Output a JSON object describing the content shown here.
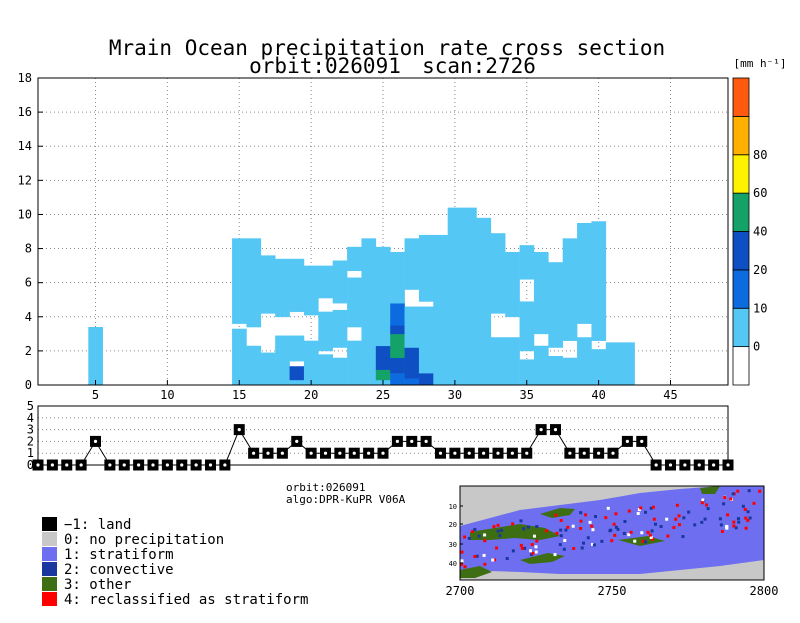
{
  "chart_data": {
    "type": "heatmap",
    "title": "Mrain Ocean precipitation rate cross section",
    "subtitle_orbit": "orbit:026091",
    "subtitle_scan": "scan:2726",
    "unit_label": "[mm h⁻¹]",
    "main": {
      "xlim": [
        1,
        49
      ],
      "ylim": [
        0,
        18
      ],
      "x_ticks": [
        5,
        10,
        15,
        20,
        25,
        30,
        35,
        40,
        45
      ],
      "y_ticks": [
        0,
        2,
        4,
        6,
        8,
        10,
        12,
        14,
        16,
        18
      ],
      "grid": true,
      "columns": [
        {
          "x": 5,
          "segments": [
            [
              0,
              3.4,
              1
            ]
          ]
        },
        {
          "x": 15,
          "segments": [
            [
              0,
              3.3,
              1
            ],
            [
              3.6,
              8.6,
              1
            ]
          ]
        },
        {
          "x": 16,
          "segments": [
            [
              0,
              2.3,
              1
            ],
            [
              3.4,
              8.6,
              1
            ]
          ]
        },
        {
          "x": 17,
          "segments": [
            [
              0,
              1.9,
              1
            ],
            [
              4.2,
              7.6,
              1
            ]
          ]
        },
        {
          "x": 18,
          "segments": [
            [
              0,
              2.9,
              1
            ],
            [
              4.0,
              7.4,
              1
            ]
          ]
        },
        {
          "x": 19,
          "segments": [
            [
              0,
              0.3,
              1
            ],
            [
              0.3,
              1.1,
              3
            ],
            [
              1.4,
              2.9,
              1
            ],
            [
              4.3,
              7.4,
              1
            ]
          ]
        },
        {
          "x": 20,
          "segments": [
            [
              0,
              2.6,
              1
            ],
            [
              4.1,
              7.0,
              1
            ]
          ]
        },
        {
          "x": 21,
          "segments": [
            [
              0,
              1.8,
              1
            ],
            [
              2.0,
              4.3,
              1
            ],
            [
              5.1,
              7.0,
              1
            ]
          ]
        },
        {
          "x": 22,
          "segments": [
            [
              0,
              1.6,
              1
            ],
            [
              2.2,
              4.4,
              1
            ],
            [
              4.8,
              7.3,
              1
            ]
          ]
        },
        {
          "x": 23,
          "segments": [
            [
              0,
              2.6,
              1
            ],
            [
              3.4,
              6.3,
              1
            ],
            [
              6.7,
              8.1,
              1
            ]
          ]
        },
        {
          "x": 24,
          "segments": [
            [
              0,
              8.6,
              1
            ]
          ]
        },
        {
          "x": 25,
          "segments": [
            [
              0,
              0.3,
              1
            ],
            [
              0.3,
              0.9,
              4
            ],
            [
              0.9,
              2.3,
              3
            ],
            [
              2.3,
              8.1,
              1
            ]
          ]
        },
        {
          "x": 26,
          "segments": [
            [
              0,
              0.7,
              2
            ],
            [
              0.7,
              1.6,
              3
            ],
            [
              1.6,
              3.0,
              4
            ],
            [
              3.0,
              3.5,
              3
            ],
            [
              3.5,
              4.8,
              2
            ],
            [
              4.8,
              7.8,
              1
            ]
          ]
        },
        {
          "x": 27,
          "segments": [
            [
              0,
              0.4,
              2
            ],
            [
              0.4,
              2.2,
              3
            ],
            [
              2.2,
              4.6,
              1
            ],
            [
              5.6,
              8.6,
              1
            ]
          ]
        },
        {
          "x": 28,
          "segments": [
            [
              0,
              0.7,
              3
            ],
            [
              0.7,
              4.6,
              1
            ],
            [
              4.9,
              8.8,
              1
            ]
          ]
        },
        {
          "x": 29,
          "segments": [
            [
              0,
              8.8,
              1
            ]
          ]
        },
        {
          "x": 30,
          "segments": [
            [
              0,
              10.4,
              1
            ]
          ]
        },
        {
          "x": 31,
          "segments": [
            [
              0,
              10.4,
              1
            ]
          ]
        },
        {
          "x": 32,
          "segments": [
            [
              0,
              9.8,
              1
            ]
          ]
        },
        {
          "x": 33,
          "segments": [
            [
              0,
              2.8,
              1
            ],
            [
              4.2,
              8.9,
              1
            ]
          ]
        },
        {
          "x": 34,
          "segments": [
            [
              0,
              2.8,
              1
            ],
            [
              4.0,
              7.8,
              1
            ]
          ]
        },
        {
          "x": 35,
          "segments": [
            [
              0,
              1.5,
              1
            ],
            [
              2.0,
              4.9,
              1
            ],
            [
              6.2,
              8.2,
              1
            ]
          ]
        },
        {
          "x": 36,
          "segments": [
            [
              0,
              2.3,
              1
            ],
            [
              3.0,
              7.8,
              1
            ]
          ]
        },
        {
          "x": 37,
          "segments": [
            [
              0,
              1.7,
              1
            ],
            [
              2.2,
              7.2,
              1
            ]
          ]
        },
        {
          "x": 38,
          "segments": [
            [
              0,
              1.6,
              1
            ],
            [
              2.6,
              8.6,
              1
            ]
          ]
        },
        {
          "x": 39,
          "segments": [
            [
              0,
              2.8,
              1
            ],
            [
              3.6,
              9.5,
              1
            ]
          ]
        },
        {
          "x": 40,
          "segments": [
            [
              0,
              2.1,
              1
            ],
            [
              2.6,
              9.6,
              1
            ]
          ]
        },
        {
          "x": 41,
          "segments": [
            [
              0,
              2.5,
              1
            ]
          ]
        },
        {
          "x": 42,
          "segments": [
            [
              0,
              2.5,
              1
            ]
          ]
        }
      ]
    },
    "colorbar": {
      "labels": [
        "0",
        "10",
        "20",
        "40",
        "60",
        "80"
      ],
      "bins": [
        {
          "color": "#ffffff"
        },
        {
          "color": "#55c7f5",
          "label": "0"
        },
        {
          "color": "#0d6be0",
          "label": "10"
        },
        {
          "color": "#0e4fc4",
          "label": "20"
        },
        {
          "color": "#14a269",
          "label": "40"
        },
        {
          "color": "#fff200",
          "label": "60"
        },
        {
          "color": "#ffb000",
          "label": "80"
        },
        {
          "color": "#ff5a10"
        }
      ]
    },
    "type_panel": {
      "ylim": [
        0,
        5
      ],
      "y_ticks": [
        0,
        1,
        2,
        3,
        4,
        5
      ],
      "x_start": 1,
      "values": [
        0,
        0,
        0,
        0,
        2,
        0,
        0,
        0,
        0,
        0,
        0,
        0,
        0,
        0,
        3,
        1,
        1,
        1,
        2,
        1,
        1,
        1,
        1,
        1,
        1,
        2,
        2,
        2,
        1,
        1,
        1,
        1,
        1,
        1,
        1,
        3,
        3,
        1,
        1,
        1,
        1,
        2,
        2,
        0,
        0,
        0,
        0,
        0,
        0
      ]
    },
    "info": {
      "orbit": "orbit:026091",
      "algo": "algo:DPR-KuPR V06A"
    },
    "legend": [
      {
        "label": "−1: land",
        "color": "#000000"
      },
      {
        "label": "0: no precipitation",
        "color": "#c8c8c8"
      },
      {
        "label": "1: stratiform",
        "color": "#6e6ef0"
      },
      {
        "label": "2: convective",
        "color": "#1838a0"
      },
      {
        "label": "3: other",
        "color": "#3e6e14"
      },
      {
        "label": "4: reclassified as stratiform",
        "color": "#ff0000"
      }
    ],
    "map": {
      "x_ticks": [
        2700,
        2750,
        2800
      ],
      "y_ticks": [
        10,
        20,
        30,
        40
      ]
    }
  }
}
